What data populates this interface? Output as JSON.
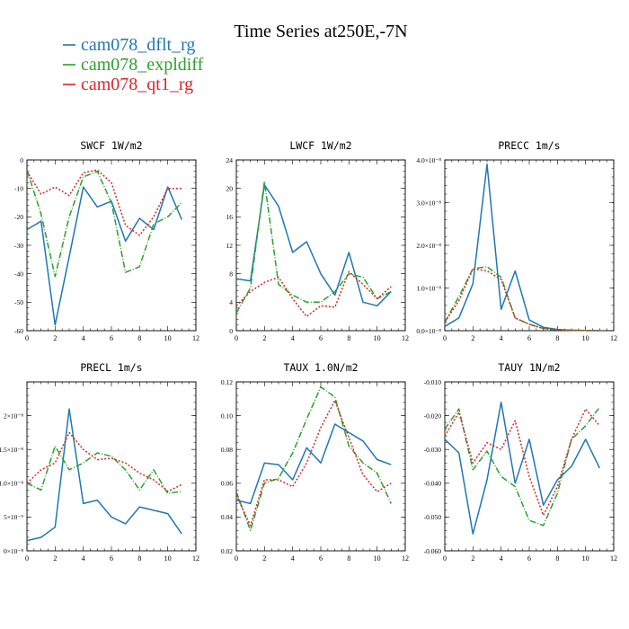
{
  "figure": {
    "title": "Time Series at250E,-7N"
  },
  "legend": [
    {
      "label": "cam078_dflt_rg",
      "color": "#1f77b4",
      "dash": ""
    },
    {
      "label": "cam078_expldiff",
      "color": "#2ca02c",
      "dash": "7,2,1,2"
    },
    {
      "label": "cam078_qt1_rg",
      "color": "#d62728",
      "dash": "2,2"
    }
  ],
  "chart_data": [
    {
      "type": "line",
      "title": "SWCF  1W/m2",
      "x": [
        0,
        1,
        2,
        3,
        4,
        5,
        6,
        7,
        8,
        9,
        10,
        11
      ],
      "xlim": [
        0,
        12
      ],
      "xticks": [
        0,
        2,
        4,
        6,
        8,
        10,
        12
      ],
      "ylim": [
        -60,
        0
      ],
      "yticks": [
        {
          "v": -60,
          "label": "-60"
        },
        {
          "v": -50,
          "label": "-50"
        },
        {
          "v": -40,
          "label": "-40"
        },
        {
          "v": -30,
          "label": "-30"
        },
        {
          "v": -20,
          "label": "-20"
        },
        {
          "v": -10,
          "label": "-10"
        },
        {
          "v": 0,
          "label": "0"
        }
      ],
      "series": [
        {
          "name": "cam078_dflt_rg",
          "values": [
            -24.5,
            -21.5,
            -58,
            -34,
            -9.5,
            -16.5,
            -14.5,
            -28.5,
            -20.5,
            -24.5,
            -9.5,
            -21
          ]
        },
        {
          "name": "cam078_expldiff",
          "values": [
            -3.5,
            -19,
            -41,
            -20,
            -6,
            -4,
            -15,
            -39.5,
            -37.5,
            -22.5,
            -20,
            -15
          ]
        },
        {
          "name": "cam078_qt1_rg",
          "values": [
            -4,
            -12,
            -9.5,
            -12.5,
            -4.5,
            -3.5,
            -8,
            -23,
            -26.5,
            -20,
            -10,
            -10
          ]
        }
      ]
    },
    {
      "type": "line",
      "title": "LWCF  1W/m2",
      "x": [
        0,
        1,
        2,
        3,
        4,
        5,
        6,
        7,
        8,
        9,
        10,
        11
      ],
      "xlim": [
        0,
        12
      ],
      "xticks": [
        0,
        2,
        4,
        6,
        8,
        10,
        12
      ],
      "ylim": [
        0,
        24
      ],
      "yticks": [
        {
          "v": 0,
          "label": "0"
        },
        {
          "v": 4,
          "label": "4"
        },
        {
          "v": 8,
          "label": "8"
        },
        {
          "v": 12,
          "label": "12"
        },
        {
          "v": 16,
          "label": "16"
        },
        {
          "v": 20,
          "label": "20"
        },
        {
          "v": 24,
          "label": "24"
        }
      ],
      "series": [
        {
          "name": "cam078_dflt_rg",
          "values": [
            7.3,
            7,
            20.5,
            17.5,
            11,
            12.5,
            8,
            5,
            11,
            4,
            3.5,
            5.5
          ]
        },
        {
          "name": "cam078_expldiff",
          "values": [
            2.5,
            6,
            21,
            6.5,
            5,
            4,
            4,
            5.5,
            8,
            7.5,
            4.5,
            5.5
          ]
        },
        {
          "name": "cam078_qt1_rg",
          "values": [
            3.5,
            5.5,
            6.8,
            7.5,
            4.5,
            2,
            3.5,
            3.3,
            8.3,
            6.5,
            4.5,
            6.2
          ]
        }
      ]
    },
    {
      "type": "line",
      "title": "PRECC  1m/s",
      "x": [
        0,
        1,
        2,
        3,
        4,
        5,
        6,
        7,
        8,
        9,
        10,
        11
      ],
      "xlim": [
        0,
        12
      ],
      "xticks": [
        0,
        2,
        4,
        6,
        8,
        10,
        12
      ],
      "ylim": [
        0,
        4e-08
      ],
      "yticks": [
        {
          "v": 0,
          "label": "0.0×10⁻⁸"
        },
        {
          "v": 1e-08,
          "label": "1.0×10⁻⁸"
        },
        {
          "v": 2e-08,
          "label": "2.0×10⁻⁸"
        },
        {
          "v": 3e-08,
          "label": "3.0×10⁻⁸"
        },
        {
          "v": 4e-08,
          "label": "4.0×10⁻⁸"
        }
      ],
      "series": [
        {
          "name": "cam078_dflt_rg",
          "values": [
            1e-09,
            3e-09,
            1.1e-08,
            3.9e-08,
            5e-09,
            1.4e-08,
            2.5e-09,
            8e-10,
            3e-10,
            1e-10,
            5e-11,
            2e-11
          ]
        },
        {
          "name": "cam078_expldiff",
          "values": [
            2e-09,
            8e-09,
            1.45e-08,
            1.5e-08,
            1.25e-08,
            3e-09,
            1.5e-09,
            5e-10,
            2e-10,
            1e-10,
            5e-11,
            2e-11
          ]
        },
        {
          "name": "cam078_qt1_rg",
          "values": [
            2e-09,
            7e-09,
            1.45e-08,
            1.4e-08,
            1.2e-08,
            3e-09,
            1.5e-09,
            5e-10,
            2e-10,
            1e-10,
            5e-11,
            2e-11
          ]
        }
      ]
    },
    {
      "type": "line",
      "title": "PRECL  1m/s",
      "x": [
        0,
        1,
        2,
        3,
        4,
        5,
        6,
        7,
        8,
        9,
        10,
        11
      ],
      "xlim": [
        0,
        12
      ],
      "xticks": [
        0,
        2,
        4,
        6,
        8,
        10,
        12
      ],
      "ylim": [
        0,
        2.5e-08
      ],
      "yticks": [
        {
          "v": 0,
          "label": "0×10⁻⁸"
        },
        {
          "v": 5e-09,
          "label": "5×10⁻⁹"
        },
        {
          "v": 1e-08,
          "label": "1.0×10⁻⁸"
        },
        {
          "v": 1.5e-08,
          "label": "1.5×10⁻⁸"
        },
        {
          "v": 2e-08,
          "label": "2×10⁻⁸"
        }
      ],
      "series": [
        {
          "name": "cam078_dflt_rg",
          "values": [
            1.5e-09,
            2e-09,
            3.5e-09,
            2.1e-08,
            7e-09,
            7.5e-09,
            5e-09,
            4e-09,
            6.5e-09,
            6e-09,
            5.5e-09,
            2.5e-09
          ]
        },
        {
          "name": "cam078_expldiff",
          "values": [
            1e-08,
            9e-09,
            1.55e-08,
            1.2e-08,
            1.3e-08,
            1.45e-08,
            1.4e-08,
            1.2e-08,
            9e-09,
            1.2e-08,
            8.5e-09,
            8.8e-09
          ]
        },
        {
          "name": "cam078_qt1_rg",
          "values": [
            1e-08,
            1.2e-08,
            1.3e-08,
            1.75e-08,
            1.5e-08,
            1.35e-08,
            1.37e-08,
            1.3e-08,
            1.15e-08,
            1.05e-08,
            8.8e-09,
            9.8e-09
          ]
        }
      ]
    },
    {
      "type": "line",
      "title": "TAUX  1.0N/m2",
      "x": [
        0,
        1,
        2,
        3,
        4,
        5,
        6,
        7,
        8,
        9,
        10,
        11
      ],
      "xlim": [
        0,
        12
      ],
      "xticks": [
        0,
        2,
        4,
        6,
        8,
        10,
        12
      ],
      "ylim": [
        0.02,
        0.12
      ],
      "yticks": [
        {
          "v": 0.02,
          "label": "0.02"
        },
        {
          "v": 0.04,
          "label": "0.04"
        },
        {
          "v": 0.06,
          "label": "0.06"
        },
        {
          "v": 0.08,
          "label": "0.08"
        },
        {
          "v": 0.1,
          "label": "0.10"
        },
        {
          "v": 0.12,
          "label": "0.12"
        }
      ],
      "series": [
        {
          "name": "cam078_dflt_rg",
          "values": [
            0.05,
            0.048,
            0.072,
            0.071,
            0.062,
            0.081,
            0.072,
            0.095,
            0.09,
            0.085,
            0.074,
            0.071
          ]
        },
        {
          "name": "cam078_expldiff",
          "values": [
            0.055,
            0.032,
            0.06,
            0.063,
            0.078,
            0.098,
            0.117,
            0.111,
            0.082,
            0.072,
            0.066,
            0.048
          ]
        },
        {
          "name": "cam078_qt1_rg",
          "values": [
            0.053,
            0.035,
            0.062,
            0.062,
            0.058,
            0.072,
            0.093,
            0.109,
            0.087,
            0.065,
            0.055,
            0.06
          ]
        }
      ]
    },
    {
      "type": "line",
      "title": "TAUY  1N/m2",
      "x": [
        0,
        1,
        2,
        3,
        4,
        5,
        6,
        7,
        8,
        9,
        10,
        11
      ],
      "xlim": [
        0,
        12
      ],
      "xticks": [
        0,
        2,
        4,
        6,
        8,
        10,
        12
      ],
      "ylim": [
        -0.06,
        -0.01
      ],
      "yticks": [
        {
          "v": -0.06,
          "label": "-0.060"
        },
        {
          "v": -0.05,
          "label": "-0.050"
        },
        {
          "v": -0.04,
          "label": "-0.040"
        },
        {
          "v": -0.03,
          "label": "-0.030"
        },
        {
          "v": -0.02,
          "label": "-0.020"
        },
        {
          "v": -0.01,
          "label": "-0.010"
        }
      ],
      "series": [
        {
          "name": "cam078_dflt_rg",
          "values": [
            -0.027,
            -0.031,
            -0.055,
            -0.039,
            -0.016,
            -0.04,
            -0.027,
            -0.0465,
            -0.039,
            -0.035,
            -0.027,
            -0.0355
          ]
        },
        {
          "name": "cam078_expldiff",
          "values": [
            -0.024,
            -0.018,
            -0.036,
            -0.0305,
            -0.038,
            -0.041,
            -0.051,
            -0.0525,
            -0.043,
            -0.027,
            -0.023,
            -0.0175
          ]
        },
        {
          "name": "cam078_qt1_rg",
          "values": [
            -0.026,
            -0.019,
            -0.034,
            -0.028,
            -0.03,
            -0.0215,
            -0.038,
            -0.0495,
            -0.041,
            -0.027,
            -0.018,
            -0.023
          ]
        }
      ]
    }
  ]
}
